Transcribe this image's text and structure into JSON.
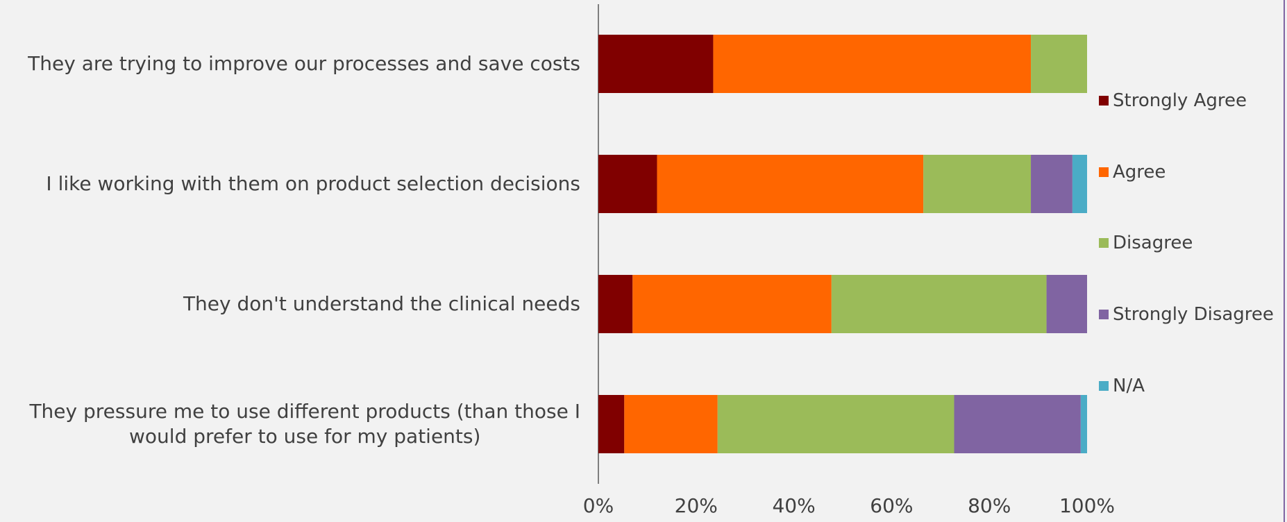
{
  "chart_data": {
    "type": "bar",
    "orientation": "horizontal",
    "stacked": "percent",
    "title": "",
    "xlabel": "",
    "ylabel": "",
    "xlim": [
      0,
      100
    ],
    "x_ticks": [
      "0%",
      "20%",
      "40%",
      "60%",
      "80%",
      "100%"
    ],
    "grid": false,
    "legend_position": "right",
    "categories": [
      "They are trying to improve our processes and save costs",
      "I like working with them on product selection decisions",
      "They don't understand the clinical needs",
      "They pressure me to use different products (than those I would prefer to use for my patients)"
    ],
    "series": [
      {
        "name": "Strongly Agree",
        "color": "#800000",
        "values": [
          23.5,
          12,
          7,
          5.3
        ]
      },
      {
        "name": "Agree",
        "color": "#ff6600",
        "values": [
          65,
          54.5,
          40.7,
          19.1
        ]
      },
      {
        "name": "Disagree",
        "color": "#9bbb59",
        "values": [
          11.5,
          22,
          44,
          48.4
        ]
      },
      {
        "name": "Strongly Disagree",
        "color": "#8064a2",
        "values": [
          0,
          8.5,
          8.3,
          25.9
        ]
      },
      {
        "name": "N/A",
        "color": "#4bacc6",
        "values": [
          0,
          3,
          0,
          1.3
        ]
      }
    ]
  },
  "labels": {
    "cat0": "They are trying to improve our processes and save costs",
    "cat1": "I like working with them on product selection decisions",
    "cat2": "They don't understand the clinical needs",
    "cat3_line1": "They pressure me to use different products (than those I",
    "cat3_line2": "would prefer to use for my patients)",
    "ticks": [
      "0%",
      "20%",
      "40%",
      "60%",
      "80%",
      "100%"
    ],
    "legend": [
      "Strongly Agree",
      "Agree",
      "Disagree",
      "Strongly Disagree",
      "N/A"
    ]
  }
}
